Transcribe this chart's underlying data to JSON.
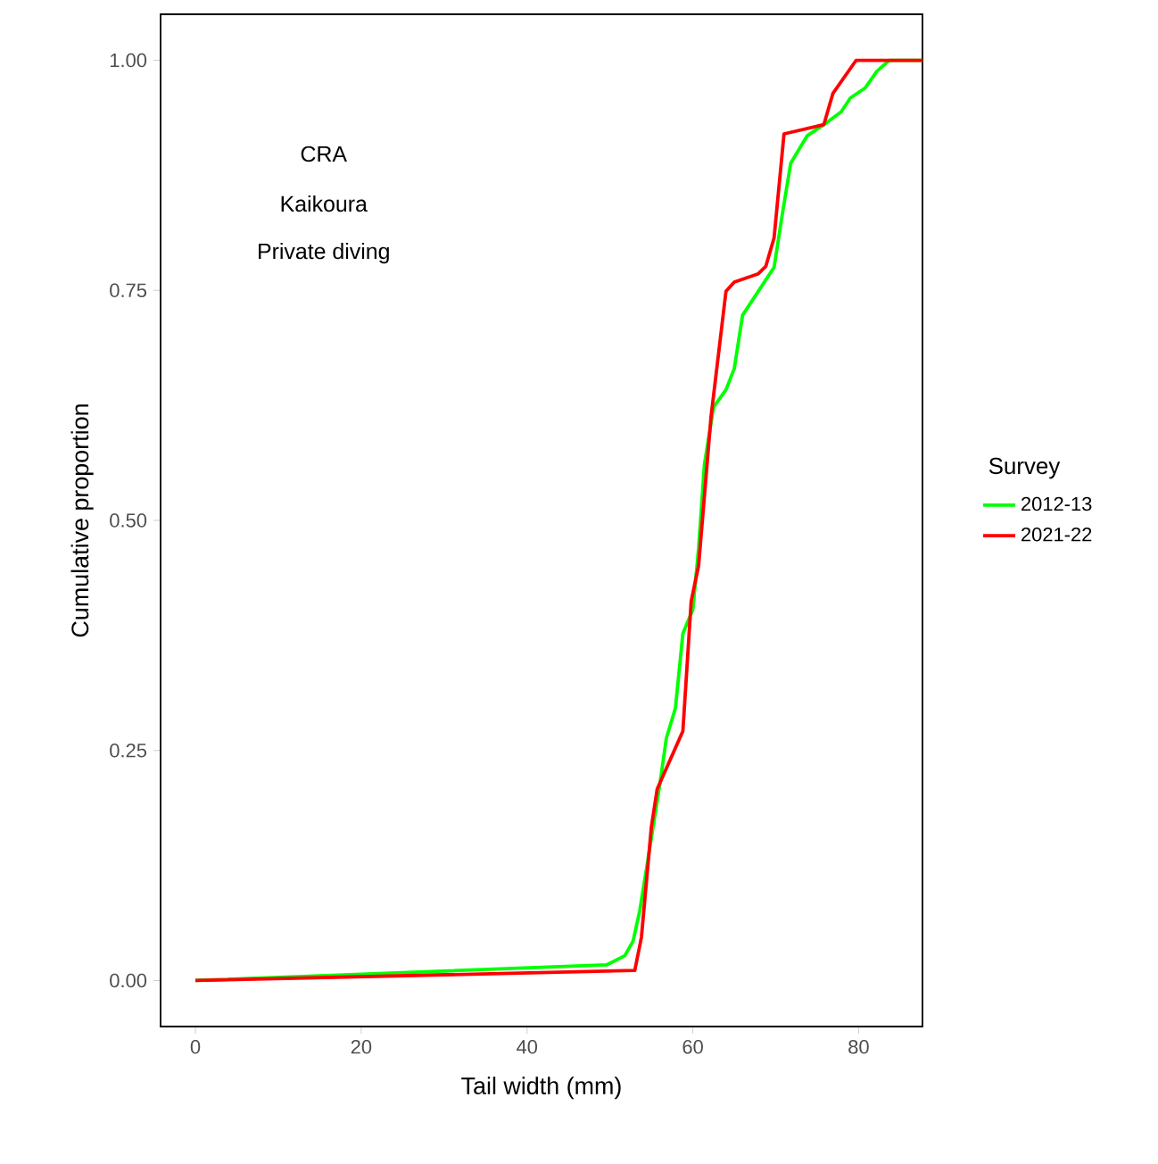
{
  "chart_data": {
    "type": "line",
    "xlabel": "Tail width (mm)",
    "ylabel": "Cumulative proportion",
    "legend_title": "Survey",
    "legend": "right",
    "grid": false,
    "annotations": [
      "CRA",
      "Kaikoura",
      "Private diving"
    ],
    "xlim": [
      -4.2,
      87.7
    ],
    "ylim": [
      -0.05,
      1.05
    ],
    "xticks": [
      0,
      20,
      40,
      60,
      80
    ],
    "yticks": [
      {
        "value": 0,
        "label": "0.00"
      },
      {
        "value": 0.25,
        "label": "0.25"
      },
      {
        "value": 0.5,
        "label": "0.50"
      },
      {
        "value": 0.75,
        "label": "0.75"
      },
      {
        "value": 1,
        "label": "1.00"
      }
    ],
    "series": [
      {
        "name": "2012-13",
        "color": "#00ff00",
        "x": [
          0,
          49.6,
          51.8,
          52.8,
          53.6,
          54.3,
          56.1,
          56.8,
          57.9,
          58.8,
          60.0,
          60.7,
          61.4,
          62.5,
          64.0,
          65.0,
          66.0,
          69.8,
          70.8,
          71.8,
          73.8,
          75.8,
          77.9,
          79.0,
          80.8,
          82.2,
          83.7,
          87.7
        ],
        "values": [
          0,
          0.017,
          0.027,
          0.043,
          0.076,
          0.115,
          0.218,
          0.263,
          0.296,
          0.377,
          0.403,
          0.47,
          0.561,
          0.623,
          0.642,
          0.665,
          0.723,
          0.775,
          0.833,
          0.888,
          0.918,
          0.93,
          0.944,
          0.959,
          0.97,
          0.988,
          1,
          1
        ]
      },
      {
        "name": "2021-22",
        "color": "#ff0000",
        "x": [
          0,
          53.0,
          53.8,
          55.0,
          55.7,
          58.8,
          59.8,
          60.7,
          62.2,
          64.0,
          65.0,
          67.9,
          68.8,
          69.8,
          71.0,
          75.8,
          76.9,
          79.7,
          87.7
        ],
        "values": [
          0,
          0.011,
          0.047,
          0.167,
          0.208,
          0.271,
          0.412,
          0.451,
          0.613,
          0.749,
          0.759,
          0.768,
          0.776,
          0.807,
          0.92,
          0.93,
          0.964,
          1,
          1
        ]
      }
    ]
  }
}
